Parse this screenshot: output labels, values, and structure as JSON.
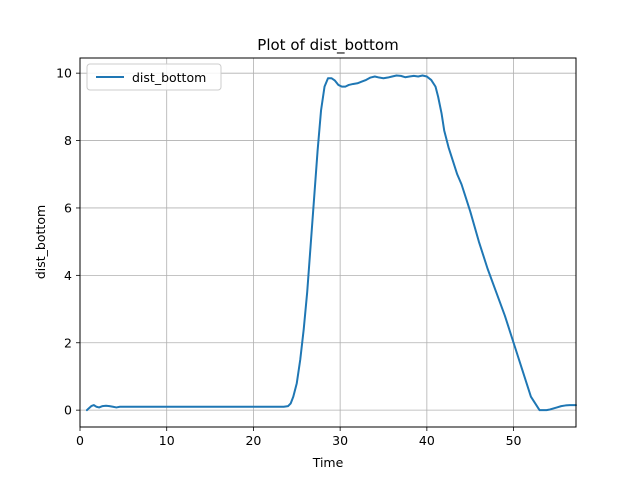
{
  "chart_data": {
    "type": "line",
    "title": "Plot of dist_bottom",
    "xlabel": "Time",
    "ylabel": "dist_bottom",
    "xlim": [
      0,
      57.2
    ],
    "ylim": [
      -0.5,
      10.45
    ],
    "xticks": [
      0,
      10,
      20,
      30,
      40,
      50
    ],
    "yticks": [
      0,
      2,
      4,
      6,
      8,
      10
    ],
    "grid": true,
    "legend": "top-left",
    "colors": {
      "line": "#1f77b4",
      "grid": "#b0b0b0"
    },
    "series": [
      {
        "name": "dist_bottom",
        "x": [
          0.8,
          1.0,
          1.3,
          1.6,
          1.9,
          2.2,
          2.6,
          3.0,
          3.4,
          3.8,
          4.2,
          4.6,
          5.0,
          6,
          8,
          10,
          12,
          14,
          16,
          18,
          20,
          22,
          23.5,
          24.0,
          24.3,
          24.6,
          25.0,
          25.4,
          25.8,
          26.2,
          26.6,
          27.0,
          27.4,
          27.8,
          28.2,
          28.6,
          29.0,
          29.4,
          29.8,
          30.2,
          30.6,
          31.0,
          31.5,
          32.0,
          32.5,
          33.0,
          33.5,
          34.0,
          34.5,
          35.0,
          35.5,
          36.0,
          36.5,
          37.0,
          37.5,
          38.0,
          38.5,
          39.0,
          39.5,
          40.0,
          40.5,
          41.0,
          41.3,
          41.7,
          42.0,
          42.5,
          43.0,
          43.5,
          44.0,
          44.5,
          45.0,
          46.0,
          47.0,
          48.0,
          49.0,
          50.0,
          51.0,
          52.0,
          53.0,
          53.8,
          54.2,
          54.6,
          55.0,
          55.5,
          56.0,
          56.5,
          57.2
        ],
        "y": [
          0.0,
          0.05,
          0.12,
          0.15,
          0.1,
          0.08,
          0.12,
          0.13,
          0.12,
          0.1,
          0.08,
          0.1,
          0.1,
          0.1,
          0.1,
          0.1,
          0.1,
          0.1,
          0.1,
          0.1,
          0.1,
          0.1,
          0.1,
          0.12,
          0.2,
          0.4,
          0.8,
          1.5,
          2.4,
          3.5,
          4.9,
          6.3,
          7.7,
          8.9,
          9.6,
          9.85,
          9.85,
          9.78,
          9.65,
          9.6,
          9.6,
          9.65,
          9.68,
          9.7,
          9.75,
          9.8,
          9.87,
          9.9,
          9.87,
          9.85,
          9.87,
          9.9,
          9.93,
          9.92,
          9.88,
          9.9,
          9.92,
          9.9,
          9.93,
          9.9,
          9.8,
          9.6,
          9.3,
          8.8,
          8.3,
          7.8,
          7.4,
          7.0,
          6.7,
          6.3,
          5.9,
          5.0,
          4.2,
          3.5,
          2.8,
          2.0,
          1.2,
          0.4,
          0.0,
          0.0,
          0.02,
          0.05,
          0.08,
          0.12,
          0.14,
          0.15,
          0.15
        ]
      }
    ]
  }
}
